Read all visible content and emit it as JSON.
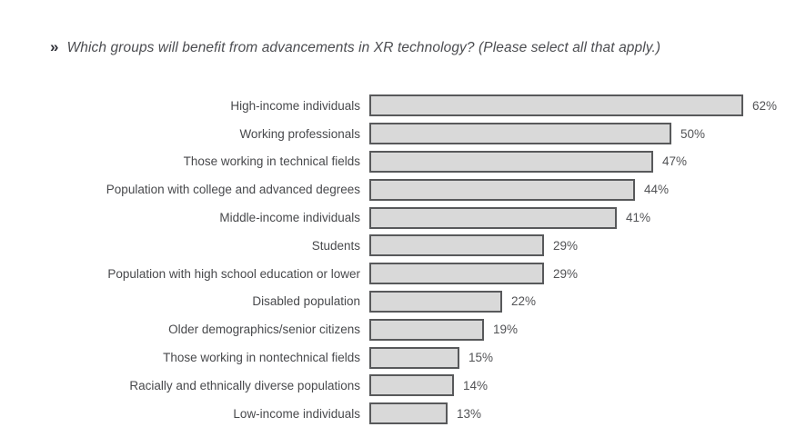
{
  "title": {
    "marker": "»",
    "text": "Which groups will benefit from advancements in XR technology? (Please select all that apply.)"
  },
  "chart_data": {
    "type": "bar",
    "orientation": "horizontal",
    "title": "Which groups will benefit from advancements in XR technology? (Please select all that apply.)",
    "categories": [
      "High-income individuals",
      "Working professionals",
      "Those working in technical fields",
      "Population with college and advanced degrees",
      "Middle-income individuals",
      "Students",
      "Population with high school education or lower",
      "Disabled population",
      "Older demographics/senior citizens",
      "Those working in nontechnical fields",
      "Racially and ethnically diverse populations",
      "Low-income individuals"
    ],
    "values": [
      62,
      50,
      47,
      44,
      41,
      29,
      29,
      22,
      19,
      15,
      14,
      13
    ],
    "value_labels": [
      "62%",
      "50%",
      "47%",
      "44%",
      "41%",
      "29%",
      "29%",
      "22%",
      "19%",
      "15%",
      "14%",
      "13%"
    ],
    "value_suffix": "%",
    "xlabel": "",
    "ylabel": "",
    "xlim": [
      0,
      62
    ],
    "grid": false,
    "legend": null,
    "data_labels": "outside-end",
    "bar_fill_color": "#d9d9d9",
    "bar_border_color": "#58595b",
    "label_text_color": "#48494c",
    "title_text_color": "#4c4d51"
  }
}
